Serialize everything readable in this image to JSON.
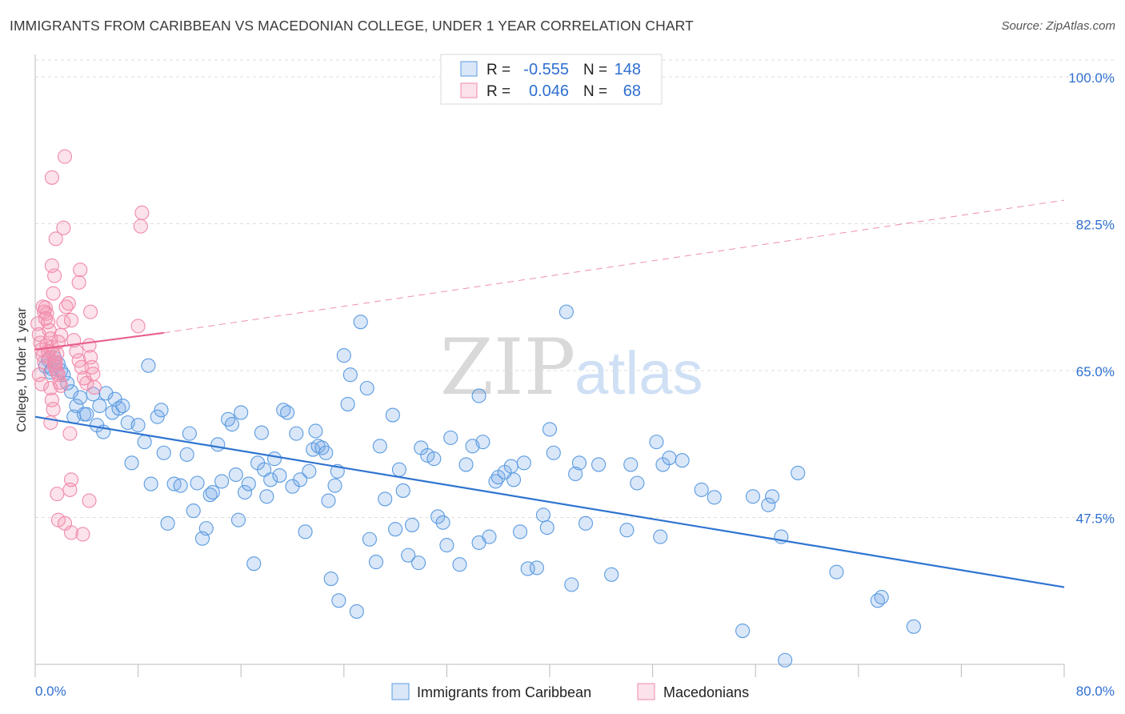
{
  "header": {
    "title": "IMMIGRANTS FROM CARIBBEAN VS MACEDONIAN COLLEGE, UNDER 1 YEAR CORRELATION CHART",
    "source": "Source: ZipAtlas.com"
  },
  "watermark": {
    "zip": "ZIP",
    "atlas": "atlas"
  },
  "colors": {
    "blue": "#5b9be0",
    "blue_fill": "rgba(120,170,235,0.28)",
    "blue_line": "#2f74d0",
    "pink": "#f08aaa",
    "pink_fill": "rgba(245,150,180,0.28)",
    "pink_line": "#e8618c",
    "axis_label": "#2f6fd0",
    "grid": "#dddddd"
  },
  "legend": {
    "r_label": "R =",
    "n_label": "N =",
    "rows": [
      {
        "r": "-0.555",
        "n": "148"
      },
      {
        "r": "0.046",
        "n": "68"
      }
    ]
  },
  "bottom_legend": [
    "Immigrants from Caribbean",
    "Macedonians"
  ],
  "chart_data": {
    "type": "scatter",
    "title": "IMMIGRANTS FROM CARIBBEAN VS MACEDONIAN COLLEGE, UNDER 1 YEAR CORRELATION CHART",
    "xlabel": "",
    "ylabel": "College, Under 1 year",
    "xlim": [
      0,
      80
    ],
    "ylim": [
      30,
      102
    ],
    "x_tick_labels": [
      "0.0%",
      "80.0%"
    ],
    "y_ticks": [
      47.5,
      65.0,
      82.5,
      100.0
    ],
    "y_tick_labels": [
      "47.5%",
      "65.0%",
      "82.5%",
      "100.0%"
    ],
    "grid": true,
    "legend_position": "top-center",
    "series": [
      {
        "name": "Immigrants from Caribbean",
        "stats": {
          "R": -0.555,
          "N": 148
        },
        "trend": {
          "x": [
            0,
            80
          ],
          "y": [
            59.5,
            39.2
          ]
        },
        "points": [
          [
            0.8,
            65.5
          ],
          [
            1.0,
            66.3
          ],
          [
            1.3,
            65.2
          ],
          [
            1.5,
            66.5
          ],
          [
            1.8,
            65.8
          ],
          [
            2.0,
            65.0
          ],
          [
            2.2,
            64.5
          ],
          [
            2.5,
            63.5
          ],
          [
            2.8,
            62.5
          ],
          [
            1.2,
            64.8
          ],
          [
            3.0,
            59.5
          ],
          [
            3.2,
            60.8
          ],
          [
            3.5,
            61.8
          ],
          [
            3.8,
            59.8
          ],
          [
            4.0,
            59.8
          ],
          [
            4.5,
            62.2
          ],
          [
            4.8,
            58.5
          ],
          [
            5.0,
            60.8
          ],
          [
            5.3,
            57.7
          ],
          [
            5.5,
            62.3
          ],
          [
            6.0,
            60.0
          ],
          [
            6.2,
            61.6
          ],
          [
            6.5,
            60.5
          ],
          [
            6.8,
            60.8
          ],
          [
            7.2,
            58.8
          ],
          [
            7.5,
            54.0
          ],
          [
            8.0,
            58.5
          ],
          [
            8.5,
            56.5
          ],
          [
            8.8,
            65.6
          ],
          [
            9.0,
            51.5
          ],
          [
            9.5,
            59.5
          ],
          [
            9.8,
            60.3
          ],
          [
            10.0,
            55.2
          ],
          [
            10.3,
            46.8
          ],
          [
            10.8,
            51.5
          ],
          [
            11.3,
            51.3
          ],
          [
            11.8,
            55.0
          ],
          [
            12.0,
            57.5
          ],
          [
            12.3,
            48.3
          ],
          [
            12.6,
            51.6
          ],
          [
            13.0,
            45.0
          ],
          [
            13.3,
            46.2
          ],
          [
            13.6,
            50.2
          ],
          [
            13.8,
            50.5
          ],
          [
            14.2,
            56.2
          ],
          [
            14.5,
            51.8
          ],
          [
            15.0,
            59.2
          ],
          [
            15.3,
            58.6
          ],
          [
            15.6,
            52.6
          ],
          [
            15.8,
            47.2
          ],
          [
            16.0,
            60.0
          ],
          [
            16.3,
            50.5
          ],
          [
            16.6,
            51.5
          ],
          [
            17.0,
            42.0
          ],
          [
            17.3,
            54.0
          ],
          [
            17.6,
            57.6
          ],
          [
            17.8,
            53.2
          ],
          [
            18.0,
            50.0
          ],
          [
            18.3,
            52.0
          ],
          [
            18.6,
            54.5
          ],
          [
            19.0,
            52.5
          ],
          [
            19.3,
            60.3
          ],
          [
            19.6,
            60.0
          ],
          [
            20.0,
            51.2
          ],
          [
            20.3,
            57.5
          ],
          [
            20.6,
            52.0
          ],
          [
            21.0,
            45.8
          ],
          [
            21.3,
            53.0
          ],
          [
            21.6,
            55.6
          ],
          [
            21.8,
            57.8
          ],
          [
            22.0,
            56.0
          ],
          [
            22.3,
            55.8
          ],
          [
            22.6,
            55.2
          ],
          [
            22.8,
            49.5
          ],
          [
            23.0,
            40.2
          ],
          [
            23.3,
            51.3
          ],
          [
            23.6,
            37.6
          ],
          [
            24.0,
            66.8
          ],
          [
            24.3,
            61.0
          ],
          [
            24.5,
            64.5
          ],
          [
            25.0,
            36.3
          ],
          [
            25.3,
            70.8
          ],
          [
            25.8,
            62.9
          ],
          [
            26.0,
            44.9
          ],
          [
            26.5,
            42.2
          ],
          [
            26.8,
            56.0
          ],
          [
            27.2,
            49.7
          ],
          [
            27.8,
            59.7
          ],
          [
            28.0,
            46.1
          ],
          [
            28.3,
            53.2
          ],
          [
            28.6,
            50.7
          ],
          [
            29.0,
            43.0
          ],
          [
            29.3,
            46.6
          ],
          [
            29.8,
            42.1
          ],
          [
            30.0,
            55.8
          ],
          [
            30.5,
            54.9
          ],
          [
            31.0,
            54.5
          ],
          [
            31.3,
            47.6
          ],
          [
            31.7,
            46.9
          ],
          [
            32.0,
            44.2
          ],
          [
            32.3,
            57.0
          ],
          [
            33.0,
            41.9
          ],
          [
            33.5,
            53.8
          ],
          [
            34.0,
            56.0
          ],
          [
            34.5,
            44.5
          ],
          [
            34.8,
            56.5
          ],
          [
            35.3,
            45.2
          ],
          [
            35.8,
            51.8
          ],
          [
            36.0,
            52.3
          ],
          [
            36.5,
            52.9
          ],
          [
            37.0,
            53.6
          ],
          [
            37.2,
            52.0
          ],
          [
            37.7,
            45.8
          ],
          [
            38.0,
            54.0
          ],
          [
            38.3,
            41.4
          ],
          [
            39.0,
            41.5
          ],
          [
            39.5,
            47.8
          ],
          [
            39.8,
            46.3
          ],
          [
            40.0,
            58.0
          ],
          [
            40.3,
            55.2
          ],
          [
            41.3,
            72.0
          ],
          [
            41.7,
            39.5
          ],
          [
            42.0,
            52.7
          ],
          [
            42.3,
            54.0
          ],
          [
            42.8,
            46.8
          ],
          [
            43.8,
            53.8
          ],
          [
            44.8,
            40.7
          ],
          [
            46.0,
            46.0
          ],
          [
            46.3,
            53.8
          ],
          [
            46.8,
            51.6
          ],
          [
            48.3,
            56.5
          ],
          [
            48.6,
            45.2
          ],
          [
            48.8,
            53.8
          ],
          [
            49.3,
            54.6
          ],
          [
            50.3,
            54.3
          ],
          [
            51.8,
            50.8
          ],
          [
            52.8,
            49.9
          ],
          [
            55.0,
            34.0
          ],
          [
            55.8,
            50.0
          ],
          [
            57.0,
            49.0
          ],
          [
            57.3,
            50.0
          ],
          [
            58.0,
            45.2
          ],
          [
            58.3,
            30.5
          ],
          [
            59.3,
            52.8
          ],
          [
            62.3,
            41.0
          ],
          [
            65.5,
            37.6
          ],
          [
            65.8,
            38.0
          ],
          [
            68.3,
            34.5
          ],
          [
            34.5,
            62.0
          ],
          [
            23.5,
            53.0
          ]
        ]
      },
      {
        "name": "Macedonians",
        "stats": {
          "R": 0.046,
          "N": 68
        },
        "trend": {
          "x": [
            0,
            10
          ],
          "y": [
            67.5,
            69.5
          ]
        },
        "trend_ext": {
          "x": [
            10,
            80
          ],
          "y": [
            69.5,
            85.3
          ]
        },
        "points": [
          [
            0.2,
            70.6
          ],
          [
            0.3,
            69.3
          ],
          [
            0.4,
            68.3
          ],
          [
            0.5,
            67.5
          ],
          [
            0.6,
            66.8
          ],
          [
            0.7,
            66.0
          ],
          [
            0.8,
            72.5
          ],
          [
            0.9,
            71.8
          ],
          [
            1.0,
            70.8
          ],
          [
            1.1,
            69.8
          ],
          [
            1.2,
            68.8
          ],
          [
            1.3,
            67.8
          ],
          [
            1.4,
            67.0
          ],
          [
            1.5,
            66.0
          ],
          [
            1.6,
            65.2
          ],
          [
            1.7,
            64.8
          ],
          [
            1.8,
            64.5
          ],
          [
            1.9,
            63.6
          ],
          [
            2.0,
            63.2
          ],
          [
            0.3,
            64.5
          ],
          [
            0.5,
            63.4
          ],
          [
            0.6,
            72.6
          ],
          [
            0.7,
            72.0
          ],
          [
            0.8,
            71.2
          ],
          [
            0.9,
            68.0
          ],
          [
            1.0,
            67.3
          ],
          [
            1.1,
            66.5
          ],
          [
            1.2,
            62.9
          ],
          [
            1.3,
            61.5
          ],
          [
            1.4,
            60.4
          ],
          [
            1.5,
            65.6
          ],
          [
            1.6,
            66.0
          ],
          [
            1.7,
            67.0
          ],
          [
            1.8,
            68.4
          ],
          [
            2.0,
            69.2
          ],
          [
            2.2,
            70.8
          ],
          [
            2.4,
            72.6
          ],
          [
            2.6,
            73.0
          ],
          [
            2.8,
            71.0
          ],
          [
            3.0,
            68.6
          ],
          [
            3.2,
            67.3
          ],
          [
            3.4,
            66.2
          ],
          [
            3.6,
            65.4
          ],
          [
            3.8,
            64.1
          ],
          [
            4.0,
            63.5
          ],
          [
            4.2,
            68.0
          ],
          [
            4.3,
            66.6
          ],
          [
            4.4,
            65.4
          ],
          [
            4.5,
            64.6
          ],
          [
            4.6,
            63.0
          ],
          [
            1.3,
            77.5
          ],
          [
            1.5,
            76.3
          ],
          [
            1.4,
            74.2
          ],
          [
            1.6,
            80.7
          ],
          [
            3.5,
            77.0
          ],
          [
            3.4,
            75.5
          ],
          [
            2.3,
            90.5
          ],
          [
            1.3,
            88.0
          ],
          [
            2.2,
            82.0
          ],
          [
            8.3,
            83.8
          ],
          [
            8.2,
            82.2
          ],
          [
            4.3,
            72.0
          ],
          [
            8.0,
            70.3
          ],
          [
            2.7,
            57.5
          ],
          [
            1.2,
            58.8
          ],
          [
            2.8,
            52.0
          ],
          [
            2.7,
            50.8
          ],
          [
            1.7,
            50.3
          ]
        ]
      }
    ],
    "extra_points": [
      [
        4.2,
        49.5
      ],
      [
        1.8,
        47.2
      ],
      [
        2.3,
        46.8
      ],
      [
        2.8,
        45.7
      ],
      [
        3.7,
        45.5
      ]
    ]
  }
}
